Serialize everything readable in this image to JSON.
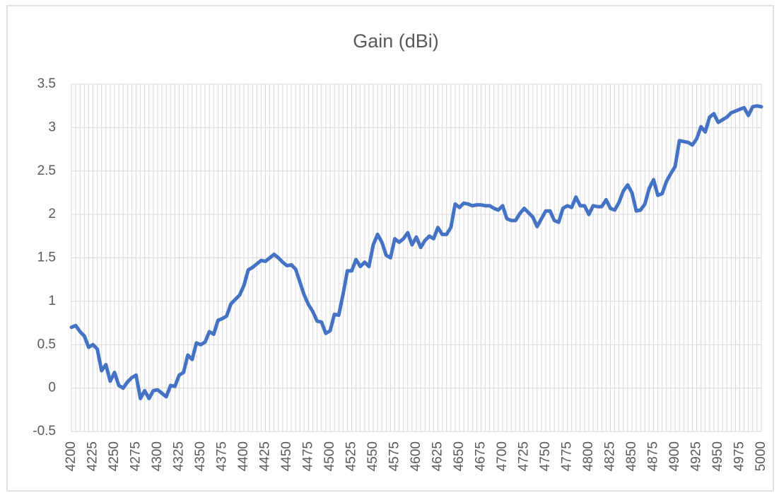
{
  "chart_data": {
    "type": "line",
    "title": "Gain (dBi)",
    "categories": [
      "4200",
      null,
      null,
      null,
      null,
      "4225",
      null,
      null,
      null,
      null,
      "4250",
      null,
      null,
      null,
      null,
      "4275",
      null,
      null,
      null,
      null,
      "4300",
      null,
      null,
      null,
      null,
      "4325",
      null,
      null,
      null,
      null,
      "4350",
      null,
      null,
      null,
      null,
      "4375",
      null,
      null,
      null,
      null,
      "4400",
      null,
      null,
      null,
      null,
      "4425",
      null,
      null,
      null,
      null,
      "4450",
      null,
      null,
      null,
      null,
      "4475",
      null,
      null,
      null,
      null,
      "4500",
      null,
      null,
      null,
      null,
      "4525",
      null,
      null,
      null,
      null,
      "4550",
      null,
      null,
      null,
      null,
      "4575",
      null,
      null,
      null,
      null,
      "4600",
      null,
      null,
      null,
      null,
      "4625",
      null,
      null,
      null,
      null,
      "4650",
      null,
      null,
      null,
      null,
      "4675",
      null,
      null,
      null,
      null,
      "4700",
      null,
      null,
      null,
      null,
      "4725",
      null,
      null,
      null,
      null,
      "4750",
      null,
      null,
      null,
      null,
      "4775",
      null,
      null,
      null,
      null,
      "4800",
      null,
      null,
      null,
      null,
      "4825",
      null,
      null,
      null,
      null,
      "4850",
      null,
      null,
      null,
      null,
      "4875",
      null,
      null,
      null,
      null,
      "4900",
      null,
      null,
      null,
      null,
      "4925",
      null,
      null,
      null,
      null,
      "4950",
      null,
      null,
      null,
      null,
      "4975",
      null,
      null,
      null,
      null,
      "5000"
    ],
    "series": [
      {
        "name": "Gain (dBi)",
        "color": "#4472c4",
        "values": [
          0.7,
          0.72,
          0.65,
          0.6,
          0.47,
          0.5,
          0.45,
          0.2,
          0.27,
          0.08,
          0.18,
          0.03,
          0.0,
          0.07,
          0.12,
          0.15,
          -0.12,
          -0.03,
          -0.12,
          -0.03,
          -0.02,
          -0.06,
          -0.1,
          0.03,
          0.02,
          0.15,
          0.18,
          0.38,
          0.33,
          0.52,
          0.5,
          0.53,
          0.65,
          0.62,
          0.78,
          0.8,
          0.83,
          0.97,
          1.02,
          1.07,
          1.18,
          1.36,
          1.39,
          1.43,
          1.47,
          1.46,
          1.5,
          1.54,
          1.5,
          1.45,
          1.41,
          1.42,
          1.37,
          1.22,
          1.07,
          0.96,
          0.88,
          0.77,
          0.76,
          0.63,
          0.66,
          0.85,
          0.84,
          1.08,
          1.35,
          1.35,
          1.48,
          1.4,
          1.45,
          1.4,
          1.65,
          1.77,
          1.68,
          1.53,
          1.5,
          1.72,
          1.68,
          1.72,
          1.79,
          1.65,
          1.74,
          1.62,
          1.7,
          1.75,
          1.72,
          1.85,
          1.77,
          1.77,
          1.85,
          2.12,
          2.08,
          2.13,
          2.12,
          2.1,
          2.11,
          2.11,
          2.1,
          2.1,
          2.07,
          2.05,
          2.1,
          1.95,
          1.93,
          1.93,
          2.01,
          2.07,
          2.02,
          1.97,
          1.86,
          1.95,
          2.04,
          2.04,
          1.93,
          1.91,
          2.07,
          2.1,
          2.08,
          2.2,
          2.1,
          2.1,
          2.0,
          2.1,
          2.09,
          2.09,
          2.17,
          2.07,
          2.05,
          2.14,
          2.27,
          2.34,
          2.25,
          2.04,
          2.05,
          2.12,
          2.3,
          2.4,
          2.22,
          2.24,
          2.38,
          2.47,
          2.55,
          2.85,
          2.84,
          2.83,
          2.8,
          2.87,
          3.01,
          2.95,
          3.12,
          3.16,
          3.06,
          3.09,
          3.12,
          3.17,
          3.19,
          3.21,
          3.23,
          3.14,
          3.24,
          3.25,
          3.24
        ]
      }
    ],
    "ylim": [
      -0.5,
      3.5
    ],
    "yticks": [
      -0.5,
      0,
      0.5,
      1,
      1.5,
      2,
      2.5,
      3,
      3.5
    ],
    "grid": true
  }
}
